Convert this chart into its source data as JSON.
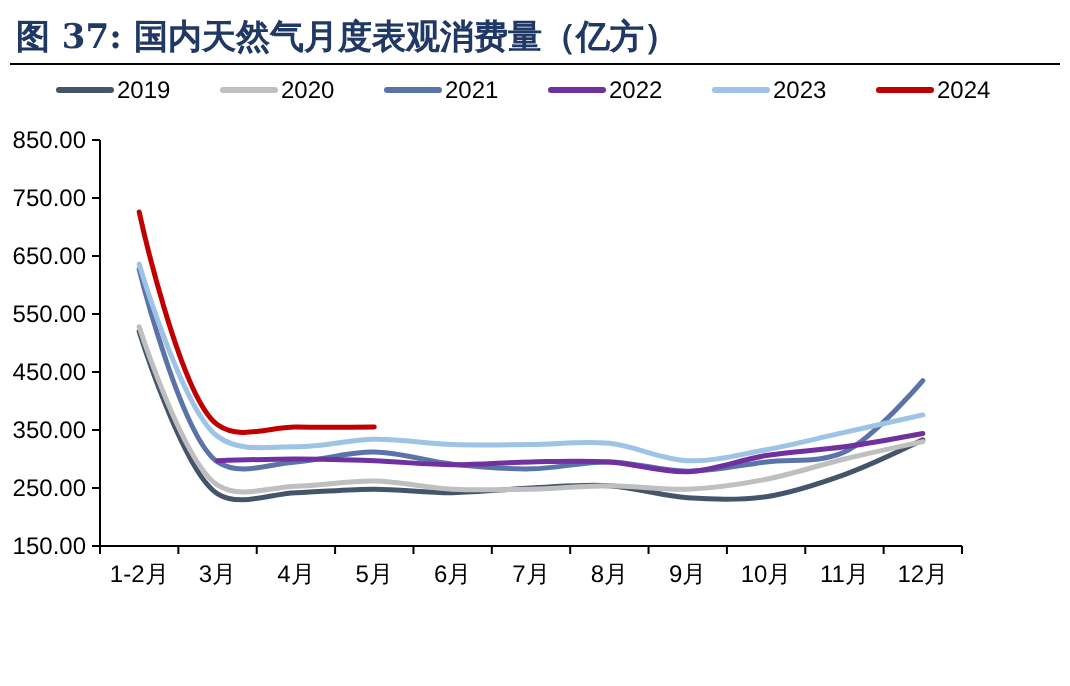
{
  "chart_data": {
    "type": "line",
    "title": "图 37:  国内天然气月度表观消费量（亿方）",
    "categories": [
      "1-2月",
      "3月",
      "4月",
      "5月",
      "6月",
      "7月",
      "8月",
      "9月",
      "10月",
      "11月",
      "12月"
    ],
    "series": [
      {
        "name": "2019",
        "color": "#44546a",
        "values": [
          520,
          240,
          242,
          248,
          242,
          250,
          254,
          233,
          235,
          273,
          333
        ]
      },
      {
        "name": "2020",
        "color": "#bfbfbf",
        "values": [
          528,
          255,
          253,
          262,
          248,
          248,
          254,
          248,
          265,
          300,
          330
        ]
      },
      {
        "name": "2021",
        "color": "#5b74a8",
        "values": [
          627,
          295,
          295,
          312,
          291,
          283,
          295,
          279,
          295,
          312,
          435
        ]
      },
      {
        "name": "2022",
        "color": "#7030a0",
        "values": [
          null,
          297,
          300,
          297,
          290,
          295,
          295,
          278,
          306,
          321,
          344
        ]
      },
      {
        "name": "2023",
        "color": "#9dc3e6",
        "values": [
          636,
          339,
          321,
          334,
          325,
          325,
          327,
          297,
          316,
          346,
          376
        ]
      },
      {
        "name": "2024",
        "color": "#c00000",
        "values": [
          726,
          359,
          355,
          355,
          null,
          null,
          null,
          null,
          null,
          null,
          null
        ]
      }
    ],
    "ylim": [
      150,
      850
    ],
    "yticks": [
      {
        "value": 150,
        "label": "150.00"
      },
      {
        "value": 250,
        "label": "250.00"
      },
      {
        "value": 350,
        "label": "350.00"
      },
      {
        "value": 450,
        "label": "450.00"
      },
      {
        "value": 550,
        "label": "550.00"
      },
      {
        "value": 650,
        "label": "650.00"
      },
      {
        "value": 750,
        "label": "750.00"
      },
      {
        "value": 850,
        "label": "850.00"
      }
    ],
    "legend": "top",
    "grid": false
  }
}
